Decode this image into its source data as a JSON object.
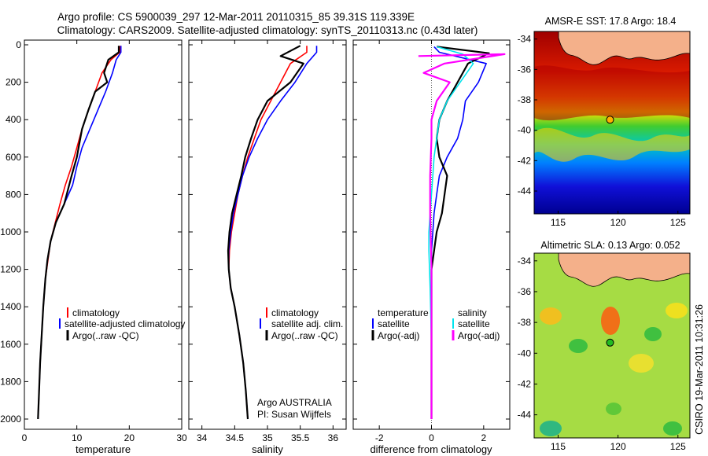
{
  "title_line1": "Argo profile: CS 5900039_297 12-Mar-2011 20110315_85 39.31S 119.339E",
  "title_line2": "Climatology: CARS2009. Satellite-adjusted climatology: synTS_20110313.nc (0.43d later)",
  "side_label": "CSIRO 19-Mar-2011 10:31:26",
  "colors": {
    "red": "#ff0000",
    "blue": "#0000ff",
    "black": "#000000",
    "cyan": "#00e5ee",
    "magenta": "#ff00ff",
    "land": "#f4b08a",
    "marker_sst": "#ffb000",
    "marker_sla": "#22bb22"
  },
  "chart_data": [
    {
      "type": "line",
      "xlabel": "temperature",
      "ylabel": "",
      "xlim": [
        0,
        30
      ],
      "ylim": [
        2000,
        0
      ],
      "xticks": [
        "0",
        "10",
        "20",
        "30"
      ],
      "yticks": [
        "0",
        "200",
        "400",
        "600",
        "800",
        "1000",
        "1200",
        "1400",
        "1600",
        "1800",
        "2000"
      ],
      "legend": {
        "position": "lower-right",
        "entries": [
          "climatology",
          "satellite-adjusted climatology",
          "Argo(..raw -QC)"
        ]
      },
      "series": [
        {
          "name": "climatology",
          "color": "#ff0000",
          "x": [
            18.3,
            18.2,
            16.5,
            14.8,
            13.5,
            12.2,
            11.0,
            10.0,
            9.0,
            7.8,
            6.8,
            5.9,
            5.0,
            4.5,
            4.0,
            3.6,
            3.3,
            3.0,
            2.8,
            2.6
          ],
          "y": [
            5,
            40,
            80,
            150,
            250,
            350,
            450,
            550,
            650,
            750,
            850,
            950,
            1050,
            1150,
            1250,
            1400,
            1550,
            1700,
            1850,
            2000
          ]
        },
        {
          "name": "satellite-adjusted climatology",
          "color": "#0000ff",
          "x": [
            18.4,
            18.4,
            17.5,
            16.8,
            15.5,
            14.0,
            12.5,
            11.0,
            10.0,
            9.2,
            7.6,
            6.0,
            5.0,
            4.4,
            4.0,
            3.6,
            3.3,
            3.0,
            2.8,
            2.6
          ],
          "y": [
            5,
            40,
            80,
            150,
            250,
            350,
            450,
            550,
            650,
            750,
            850,
            950,
            1050,
            1150,
            1250,
            1400,
            1550,
            1700,
            1850,
            2000
          ]
        },
        {
          "name": "Argo(..raw -QC)",
          "color": "#000000",
          "x": [
            18.0,
            18.0,
            16.0,
            15.2,
            15.8,
            13.5,
            12.2,
            11.0,
            10.0,
            9.0,
            7.6,
            6.0,
            5.0,
            4.4,
            4.0,
            3.6,
            3.3,
            3.0,
            2.8,
            2.6
          ],
          "y": [
            5,
            40,
            80,
            150,
            200,
            250,
            350,
            450,
            600,
            700,
            850,
            950,
            1050,
            1150,
            1250,
            1400,
            1550,
            1700,
            1850,
            2000
          ]
        }
      ]
    },
    {
      "type": "line",
      "xlabel": "salinity",
      "ylabel": "",
      "xlim": [
        33.8,
        36.2
      ],
      "ylim": [
        2000,
        0
      ],
      "xticks": [
        "34",
        "34.5",
        "35",
        "35.5",
        "36"
      ],
      "yticks": [],
      "legend": {
        "position": "lower-right",
        "entries": [
          "climatology",
          "satellite adj. clim.",
          "Argo(..raw -QC)"
        ]
      },
      "annotation": [
        "Argo AUSTRALIA",
        "PI: Susan Wijffels"
      ],
      "series": [
        {
          "name": "climatology",
          "color": "#ff0000",
          "x": [
            35.6,
            35.6,
            35.35,
            35.2,
            35.05,
            34.9,
            34.8,
            34.7,
            34.62,
            34.55,
            34.5,
            34.45,
            34.42,
            34.41,
            34.44,
            34.5,
            34.57,
            34.63,
            34.67,
            34.7
          ],
          "y": [
            5,
            40,
            100,
            200,
            300,
            400,
            500,
            600,
            700,
            800,
            900,
            1000,
            1100,
            1200,
            1300,
            1400,
            1550,
            1700,
            1850,
            2000
          ]
        },
        {
          "name": "satellite adj. clim.",
          "color": "#0000ff",
          "x": [
            35.75,
            35.75,
            35.6,
            35.42,
            35.2,
            35.0,
            34.85,
            34.72,
            34.62,
            34.55,
            34.48,
            34.44,
            34.41,
            34.41,
            34.44,
            34.5,
            34.57,
            34.63,
            34.67,
            34.7
          ],
          "y": [
            5,
            40,
            100,
            200,
            300,
            400,
            500,
            600,
            700,
            800,
            900,
            1000,
            1100,
            1200,
            1300,
            1400,
            1550,
            1700,
            1850,
            2000
          ]
        },
        {
          "name": "Argo(..raw -QC)",
          "color": "#000000",
          "x": [
            35.5,
            35.2,
            35.55,
            35.35,
            35.0,
            34.85,
            34.75,
            34.66,
            34.6,
            34.53,
            34.46,
            34.42,
            34.4,
            34.41,
            34.44,
            34.5,
            34.57,
            34.63,
            34.67,
            34.7
          ],
          "y": [
            5,
            60,
            100,
            200,
            300,
            400,
            500,
            600,
            700,
            800,
            900,
            1000,
            1100,
            1200,
            1300,
            1400,
            1550,
            1700,
            1850,
            2000
          ]
        }
      ]
    },
    {
      "type": "line",
      "xlabel": "difference from climatology",
      "ylabel": "",
      "xlim": [
        -3,
        3
      ],
      "ylim": [
        2000,
        0
      ],
      "xticks": [
        "-2",
        "0",
        "2"
      ],
      "yticks": [],
      "legend": {
        "position": "lower-center",
        "groups": [
          {
            "header": "temperature",
            "entries": [
              "satellite",
              "Argo(-adj)"
            ]
          },
          {
            "header": "salinity",
            "entries": [
              "satellite",
              "Argo(-adj)"
            ]
          }
        ]
      },
      "series": [
        {
          "name": "temperature satellite",
          "color": "#0000ff",
          "x": [
            0.1,
            0.3,
            2.1,
            1.8,
            1.3,
            1.2,
            1.0,
            0.6,
            0.3,
            0.2,
            0.1,
            0.05,
            0.0,
            0.0,
            0.0,
            0.0,
            0.0
          ],
          "y": [
            10,
            40,
            100,
            200,
            300,
            400,
            500,
            600,
            700,
            800,
            900,
            1000,
            1100,
            1200,
            1400,
            1700,
            2000
          ]
        },
        {
          "name": "temperature Argo(-adj)",
          "color": "#000000",
          "x": [
            0.2,
            2.2,
            1.4,
            1.0,
            0.6,
            0.3,
            0.2,
            0.3,
            0.6,
            0.5,
            0.4,
            0.2,
            0.1,
            0.0,
            0.0,
            0.0
          ],
          "y": [
            10,
            45,
            100,
            200,
            300,
            400,
            500,
            600,
            700,
            800,
            900,
            1000,
            1100,
            1200,
            1500,
            2000
          ]
        },
        {
          "name": "salinity satellite",
          "color": "#00e5ee",
          "x": [
            0.2,
            1.2,
            1.6,
            1.1,
            0.6,
            0.3,
            0.2,
            0.1,
            0.05,
            0.0,
            -0.05,
            -0.1,
            -0.1,
            -0.05,
            0.0,
            0.0
          ],
          "y": [
            10,
            50,
            100,
            200,
            300,
            400,
            500,
            600,
            700,
            800,
            900,
            1000,
            1100,
            1300,
            1600,
            2000
          ]
        },
        {
          "name": "salinity Argo(-adj)",
          "color": "#ff00ff",
          "x": [
            -0.5,
            2.8,
            0.5,
            -0.3,
            0.7,
            0.2,
            0.0,
            0.0,
            -0.05,
            -0.05,
            0.0,
            0.0,
            0.0
          ],
          "y": [
            60,
            50,
            100,
            150,
            200,
            300,
            400,
            500,
            700,
            900,
            1200,
            1600,
            2000
          ]
        }
      ]
    },
    {
      "type": "heatmap",
      "title": "AMSR-E SST: 17.8 Argo: 18.4",
      "xlim": [
        113,
        126
      ],
      "ylim": [
        -45.5,
        -33.5
      ],
      "xticks": [
        "115",
        "120",
        "125"
      ],
      "yticks": [
        "-34",
        "-36",
        "-38",
        "-40",
        "-42",
        "-44"
      ],
      "marker": {
        "lon": 119.339,
        "lat": -39.31
      }
    },
    {
      "type": "heatmap",
      "title": "Altimetric SLA: 0.13 Argo: 0.052",
      "xlim": [
        113,
        126
      ],
      "ylim": [
        -45.5,
        -33.5
      ],
      "xticks": [
        "115",
        "120",
        "125"
      ],
      "yticks": [
        "-34",
        "-36",
        "-38",
        "-40",
        "-42",
        "-44"
      ],
      "marker": {
        "lon": 119.339,
        "lat": -39.31
      }
    }
  ]
}
